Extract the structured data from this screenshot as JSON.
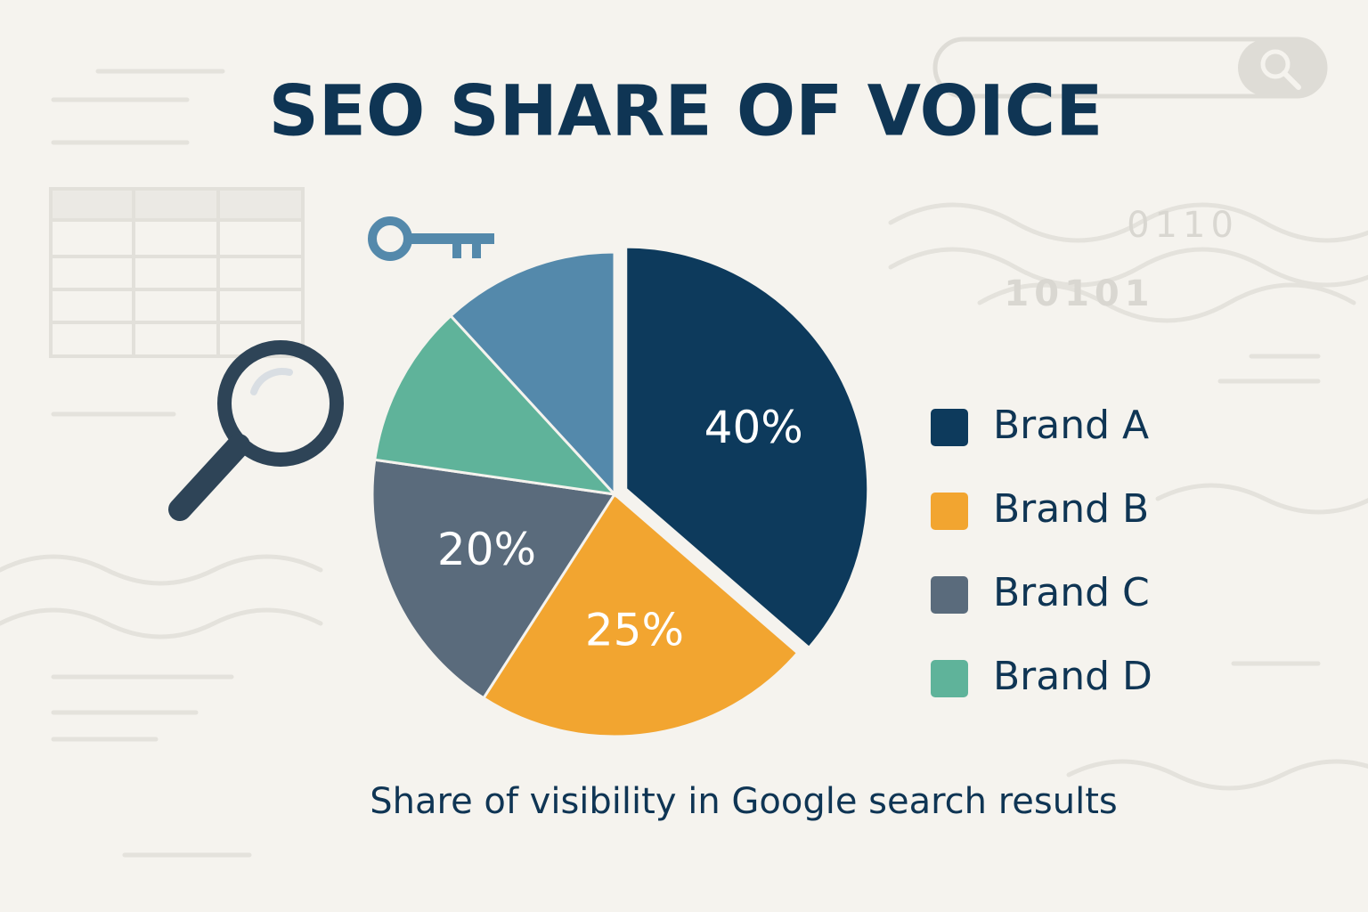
{
  "chart_data": {
    "type": "pie",
    "title": "SEO SHARE OF VOICE",
    "subtitle": "Share of visibility in Google search results",
    "categories": [
      "Brand A",
      "Brand B",
      "Brand C",
      "Brand D",
      null
    ],
    "values": [
      40,
      25,
      20,
      12,
      13
    ],
    "value_labels": [
      "40%",
      "25%",
      "20%",
      null,
      null
    ],
    "colors": [
      "#0d3a5c",
      "#f2a530",
      "#5a6b7c",
      "#5fb39a",
      "#5489ab"
    ],
    "legend": "right"
  },
  "decor": {
    "binary": [
      "0110",
      "10101"
    ]
  }
}
